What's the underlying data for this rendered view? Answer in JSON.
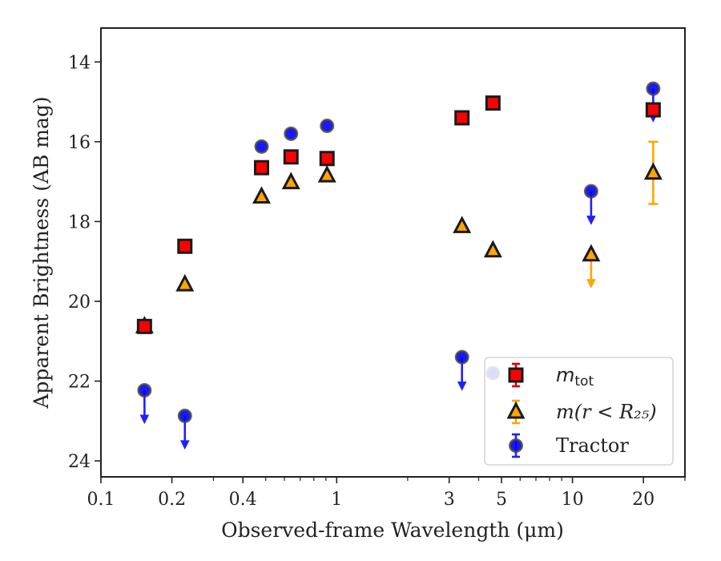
{
  "chart_data": {
    "type": "scatter",
    "xlabel": "Observed-frame Wavelength (μm)",
    "ylabel": "Apparent Brightness (AB mag)",
    "x_scale": "log",
    "xlim": [
      0.1,
      30
    ],
    "ylim": [
      24.4,
      13.15
    ],
    "y_inverted": true,
    "xticks": [
      0.1,
      0.2,
      0.4,
      1,
      3,
      5,
      10,
      20
    ],
    "xtick_labels": [
      "0.1",
      "0.2",
      "0.4",
      "1",
      "3",
      "5",
      "10",
      "20"
    ],
    "yticks": [
      14,
      16,
      18,
      20,
      22,
      24
    ],
    "ytick_labels": [
      "14",
      "16",
      "18",
      "20",
      "22",
      "24"
    ],
    "grid": false,
    "legend": {
      "placement": "lower-right",
      "entries": [
        {
          "series": "mtot",
          "label_main": "m",
          "label_sub": "tot"
        },
        {
          "series": "m_r25",
          "label": "m(r < R₂₅)"
        },
        {
          "series": "tractor",
          "label": "Tractor"
        }
      ]
    },
    "series": [
      {
        "id": "mtot",
        "marker": "square",
        "color": "#ff0000",
        "edgecolor": "#1a1a1a",
        "points": [
          {
            "x": 0.153,
            "y": 20.63
          },
          {
            "x": 0.227,
            "y": 18.62
          },
          {
            "x": 0.48,
            "y": 16.65
          },
          {
            "x": 0.64,
            "y": 16.38
          },
          {
            "x": 0.91,
            "y": 16.42
          },
          {
            "x": 3.4,
            "y": 15.4
          },
          {
            "x": 4.6,
            "y": 15.03
          },
          {
            "x": 22.0,
            "y": 15.2,
            "yerr": 0.12
          }
        ]
      },
      {
        "id": "m_r25",
        "marker": "triangle",
        "color": "#ffa500",
        "edgecolor": "#1a1a1a",
        "points": [
          {
            "x": 0.153,
            "y": 20.63
          },
          {
            "x": 0.227,
            "y": 19.58
          },
          {
            "x": 0.48,
            "y": 17.38
          },
          {
            "x": 0.64,
            "y": 17.02
          },
          {
            "x": 0.91,
            "y": 16.85
          },
          {
            "x": 3.4,
            "y": 18.12
          },
          {
            "x": 4.6,
            "y": 18.73
          },
          {
            "x": 12.0,
            "y": 18.83,
            "upper_limit": true
          },
          {
            "x": 22.0,
            "y": 16.78,
            "yerr": 0.78
          }
        ]
      },
      {
        "id": "tractor",
        "marker": "circle",
        "color": "#0000ff",
        "edgecolor": "#444444",
        "points": [
          {
            "x": 0.153,
            "y": 22.23,
            "upper_limit": true
          },
          {
            "x": 0.227,
            "y": 22.87,
            "upper_limit": true
          },
          {
            "x": 0.48,
            "y": 16.12
          },
          {
            "x": 0.64,
            "y": 15.8
          },
          {
            "x": 0.91,
            "y": 15.6
          },
          {
            "x": 3.4,
            "y": 21.4,
            "upper_limit": true
          },
          {
            "x": 4.6,
            "y": 21.8
          },
          {
            "x": 12.0,
            "y": 17.24,
            "upper_limit": true
          },
          {
            "x": 22.0,
            "y": 14.67,
            "upper_limit": true
          }
        ]
      }
    ]
  }
}
